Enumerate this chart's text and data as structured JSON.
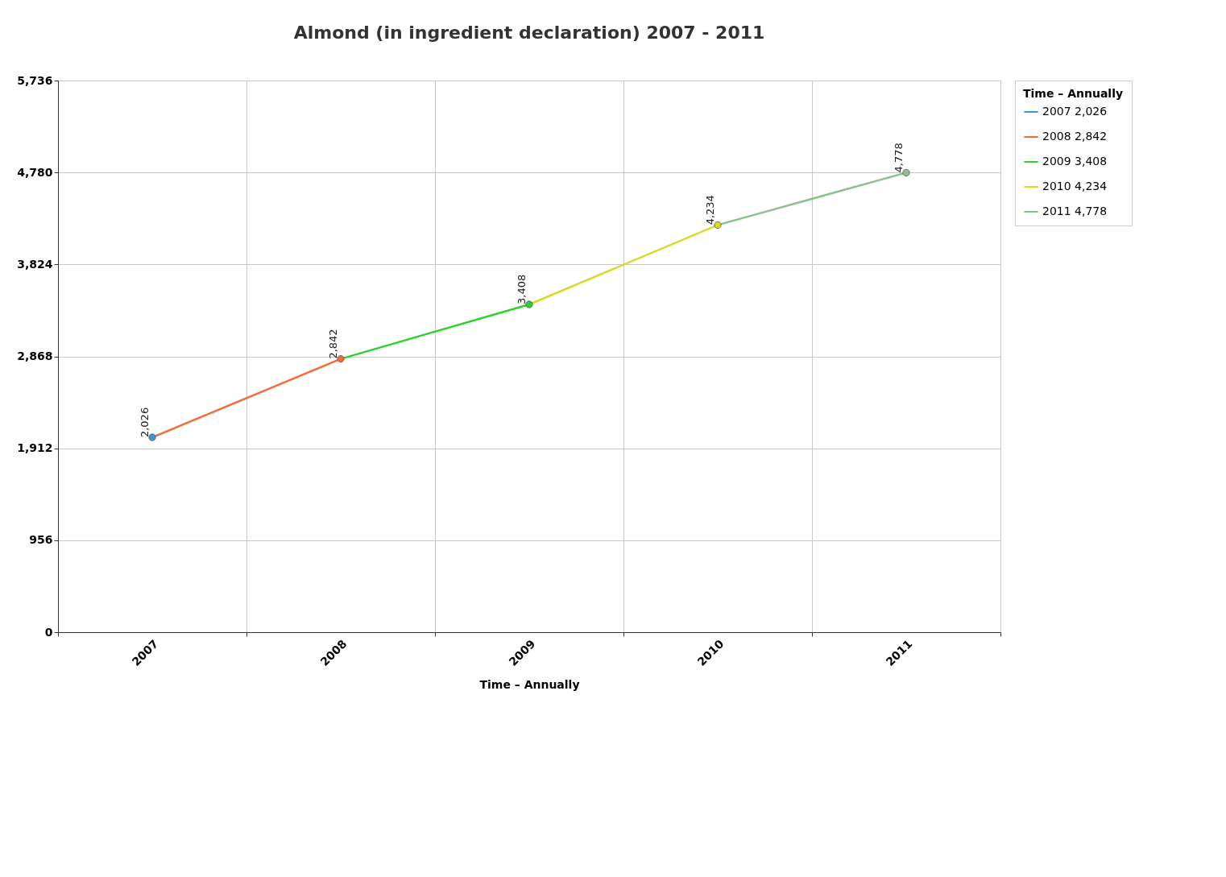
{
  "chart_data": {
    "type": "line",
    "title": "Almond (in ingredient declaration) 2007 - 2011",
    "xlabel": "Time – Annually",
    "legend_title": "Time – Annually",
    "categories": [
      "2007",
      "2008",
      "2009",
      "2010",
      "2011"
    ],
    "series": [
      {
        "name": "2007 2,026",
        "color": "#3a9ad9",
        "values": [
          2026,
          null,
          null,
          null,
          null
        ],
        "value_labels": [
          "2,026",
          null,
          null,
          null,
          null
        ]
      },
      {
        "name": "2008 2,842",
        "color": "#f26c3a",
        "values": [
          null,
          2842,
          null,
          null,
          null
        ],
        "value_labels": [
          null,
          "2,842",
          null,
          null,
          null
        ]
      },
      {
        "name": "2009 3,408",
        "color": "#2fd12f",
        "values": [
          null,
          null,
          3408,
          null,
          null
        ],
        "value_labels": [
          null,
          null,
          "3,408",
          null,
          null
        ]
      },
      {
        "name": "2010 4,234",
        "color": "#d9d92a",
        "values": [
          null,
          null,
          null,
          4234,
          null
        ],
        "value_labels": [
          null,
          null,
          null,
          "4,234",
          null
        ]
      },
      {
        "name": "2011 4,778",
        "color": "#8fbf8f",
        "values": [
          null,
          null,
          null,
          null,
          4778
        ],
        "value_labels": [
          null,
          null,
          null,
          null,
          "4,778"
        ]
      }
    ],
    "ylim": [
      0,
      5736
    ],
    "yticks": [
      0,
      {
        "value": 956,
        "label": "956"
      },
      {
        "value": 1912,
        "label": "1,912"
      },
      {
        "value": 2868,
        "label": "2,868"
      },
      {
        "value": 3824,
        "label": "3,824"
      },
      {
        "value": 4780,
        "label": "4,780"
      },
      {
        "value": 5736,
        "label": "5,736"
      }
    ],
    "grid": true,
    "legend": "top right",
    "marker": "circle"
  }
}
